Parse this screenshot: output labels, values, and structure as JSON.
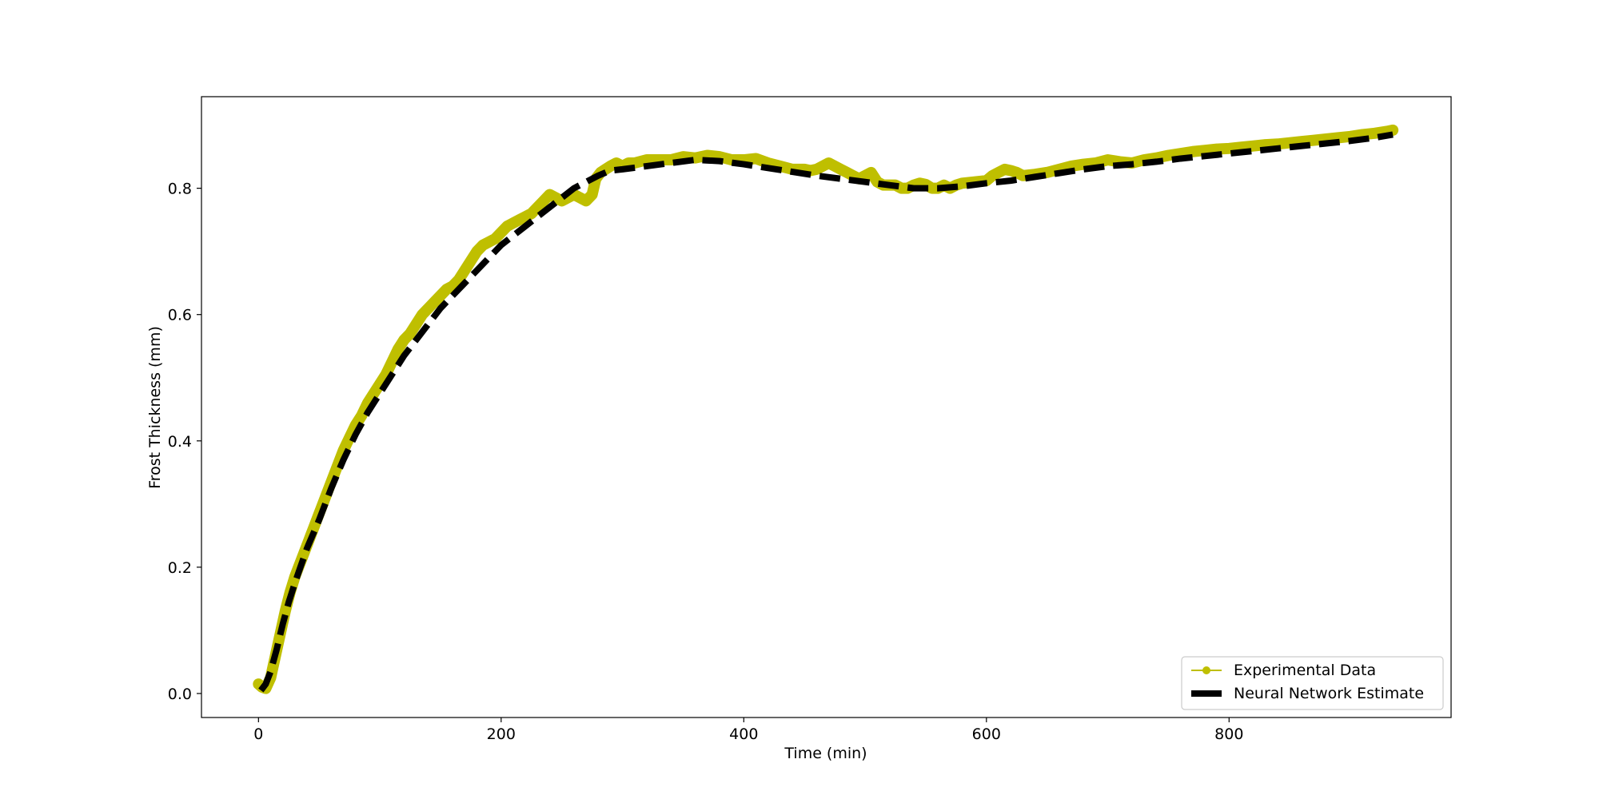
{
  "chart_data": {
    "type": "line",
    "title": "",
    "xlabel": "Time (min)",
    "ylabel": "Frost Thickness (mm)",
    "xlim": [
      -47,
      983
    ],
    "ylim": [
      -0.038,
      0.945
    ],
    "x_ticks": [
      0,
      200,
      400,
      600,
      800
    ],
    "y_ticks": [
      0.0,
      0.2,
      0.4,
      0.6,
      0.8
    ],
    "x_tick_labels": [
      "0",
      "200",
      "400",
      "600",
      "800"
    ],
    "y_tick_labels": [
      "0.0",
      "0.2",
      "0.4",
      "0.6",
      "0.8"
    ],
    "grid": false,
    "legend_position": "bottom-right",
    "series": [
      {
        "name": "Experimental Data",
        "style": "line-with-circle-markers",
        "color": "#bfbf00",
        "x": [
          0,
          3,
          6,
          10,
          14,
          18,
          22,
          26,
          30,
          35,
          40,
          45,
          50,
          55,
          60,
          65,
          70,
          75,
          80,
          85,
          90,
          95,
          100,
          105,
          110,
          115,
          120,
          125,
          130,
          135,
          140,
          145,
          150,
          155,
          160,
          165,
          170,
          175,
          180,
          185,
          190,
          195,
          200,
          205,
          210,
          215,
          220,
          225,
          230,
          235,
          240,
          245,
          250,
          255,
          260,
          265,
          270,
          275,
          278,
          282,
          286,
          290,
          295,
          300,
          305,
          310,
          320,
          330,
          340,
          350,
          360,
          370,
          380,
          390,
          400,
          410,
          420,
          430,
          440,
          450,
          455,
          460,
          465,
          470,
          475,
          480,
          485,
          490,
          495,
          500,
          505,
          510,
          515,
          520,
          525,
          530,
          535,
          540,
          545,
          550,
          555,
          560,
          565,
          570,
          575,
          580,
          590,
          600,
          605,
          610,
          615,
          620,
          625,
          630,
          640,
          650,
          660,
          670,
          680,
          690,
          700,
          710,
          720,
          730,
          740,
          750,
          760,
          770,
          780,
          790,
          800,
          810,
          820,
          830,
          840,
          850,
          860,
          870,
          880,
          890,
          900,
          910,
          920,
          930,
          935
        ],
        "y": [
          0.015,
          0.01,
          0.008,
          0.025,
          0.06,
          0.095,
          0.13,
          0.16,
          0.185,
          0.21,
          0.235,
          0.26,
          0.285,
          0.31,
          0.335,
          0.36,
          0.385,
          0.405,
          0.425,
          0.44,
          0.46,
          0.475,
          0.49,
          0.505,
          0.525,
          0.545,
          0.56,
          0.57,
          0.585,
          0.6,
          0.61,
          0.62,
          0.63,
          0.64,
          0.645,
          0.655,
          0.67,
          0.685,
          0.7,
          0.71,
          0.715,
          0.72,
          0.73,
          0.74,
          0.745,
          0.75,
          0.755,
          0.76,
          0.77,
          0.78,
          0.79,
          0.785,
          0.78,
          0.785,
          0.79,
          0.785,
          0.78,
          0.79,
          0.815,
          0.825,
          0.83,
          0.835,
          0.84,
          0.835,
          0.84,
          0.84,
          0.845,
          0.845,
          0.845,
          0.85,
          0.848,
          0.852,
          0.85,
          0.845,
          0.845,
          0.847,
          0.84,
          0.835,
          0.83,
          0.83,
          0.828,
          0.83,
          0.835,
          0.84,
          0.835,
          0.83,
          0.825,
          0.82,
          0.815,
          0.82,
          0.825,
          0.81,
          0.805,
          0.805,
          0.805,
          0.8,
          0.8,
          0.805,
          0.808,
          0.806,
          0.8,
          0.8,
          0.805,
          0.8,
          0.805,
          0.808,
          0.81,
          0.812,
          0.82,
          0.825,
          0.83,
          0.828,
          0.825,
          0.82,
          0.822,
          0.825,
          0.83,
          0.835,
          0.838,
          0.84,
          0.845,
          0.842,
          0.84,
          0.845,
          0.848,
          0.852,
          0.855,
          0.858,
          0.86,
          0.862,
          0.863,
          0.865,
          0.867,
          0.869,
          0.87,
          0.872,
          0.874,
          0.876,
          0.878,
          0.88,
          0.882,
          0.885,
          0.887,
          0.89,
          0.892
        ]
      },
      {
        "name": "Neural Network Estimate",
        "style": "dashed-line",
        "color": "#000000",
        "x": [
          2,
          6,
          10,
          15,
          20,
          25,
          30,
          40,
          50,
          60,
          70,
          80,
          90,
          100,
          110,
          120,
          130,
          140,
          150,
          160,
          170,
          180,
          190,
          200,
          210,
          220,
          230,
          240,
          250,
          260,
          270,
          280,
          290,
          300,
          320,
          340,
          360,
          380,
          400,
          420,
          440,
          460,
          480,
          500,
          520,
          540,
          560,
          580,
          600,
          620,
          640,
          660,
          680,
          700,
          720,
          740,
          760,
          780,
          800,
          820,
          840,
          860,
          880,
          900,
          920,
          935
        ],
        "y": [
          0.005,
          0.015,
          0.035,
          0.07,
          0.11,
          0.145,
          0.175,
          0.23,
          0.275,
          0.325,
          0.37,
          0.41,
          0.445,
          0.475,
          0.505,
          0.535,
          0.56,
          0.585,
          0.61,
          0.63,
          0.65,
          0.67,
          0.69,
          0.71,
          0.725,
          0.74,
          0.755,
          0.77,
          0.785,
          0.8,
          0.81,
          0.82,
          0.828,
          0.83,
          0.835,
          0.84,
          0.845,
          0.843,
          0.838,
          0.832,
          0.826,
          0.82,
          0.815,
          0.81,
          0.805,
          0.8,
          0.8,
          0.803,
          0.808,
          0.812,
          0.818,
          0.824,
          0.83,
          0.835,
          0.838,
          0.842,
          0.847,
          0.851,
          0.855,
          0.859,
          0.863,
          0.867,
          0.871,
          0.875,
          0.88,
          0.885
        ]
      }
    ]
  }
}
